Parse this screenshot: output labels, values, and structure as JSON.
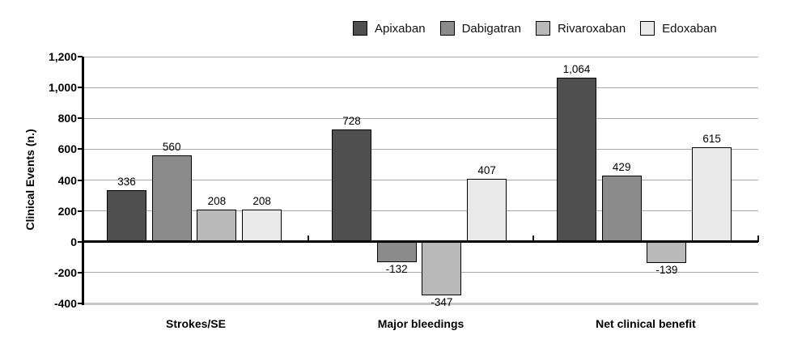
{
  "chart_data": {
    "type": "bar",
    "title": "",
    "xlabel": "",
    "ylabel": "Clinical Events (n.)",
    "ylim": [
      -400,
      1200
    ],
    "grid": true,
    "legend_position": "top",
    "yticks": [
      {
        "value": 1200,
        "label": "1,200"
      },
      {
        "value": 1000,
        "label": "1,000"
      },
      {
        "value": 800,
        "label": "800"
      },
      {
        "value": 600,
        "label": "600"
      },
      {
        "value": 400,
        "label": "400"
      },
      {
        "value": 200,
        "label": "200"
      },
      {
        "value": 0,
        "label": "0"
      },
      {
        "value": -200,
        "label": "-200"
      },
      {
        "value": -400,
        "label": "-400"
      }
    ],
    "categories": [
      "Strokes/SE",
      "Major bleedings",
      "Net clinical benefit"
    ],
    "series": [
      {
        "name": "Apixaban",
        "color": "#4f4f4f",
        "values": [
          336,
          728,
          1064
        ],
        "value_labels": [
          "336",
          "728",
          "1,064"
        ]
      },
      {
        "name": "Dabigatran",
        "color": "#8b8b8b",
        "values": [
          560,
          -132,
          429
        ],
        "value_labels": [
          "560",
          "-132",
          "429"
        ]
      },
      {
        "name": "Rivaroxaban",
        "color": "#b9b9b9",
        "values": [
          208,
          -347,
          -139
        ],
        "value_labels": [
          "208",
          "-347",
          "-139"
        ]
      },
      {
        "name": "Edoxaban",
        "color": "#e9e9e9",
        "values": [
          208,
          407,
          615
        ],
        "value_labels": [
          "208",
          "407",
          "615"
        ]
      }
    ]
  },
  "colors": {
    "background": "#ffffff",
    "gridline": "#a9a9a9",
    "axis": "#000000",
    "zero_line": "#000000",
    "bottom_border": "#c6c6c6",
    "bar_border": "#000000"
  }
}
